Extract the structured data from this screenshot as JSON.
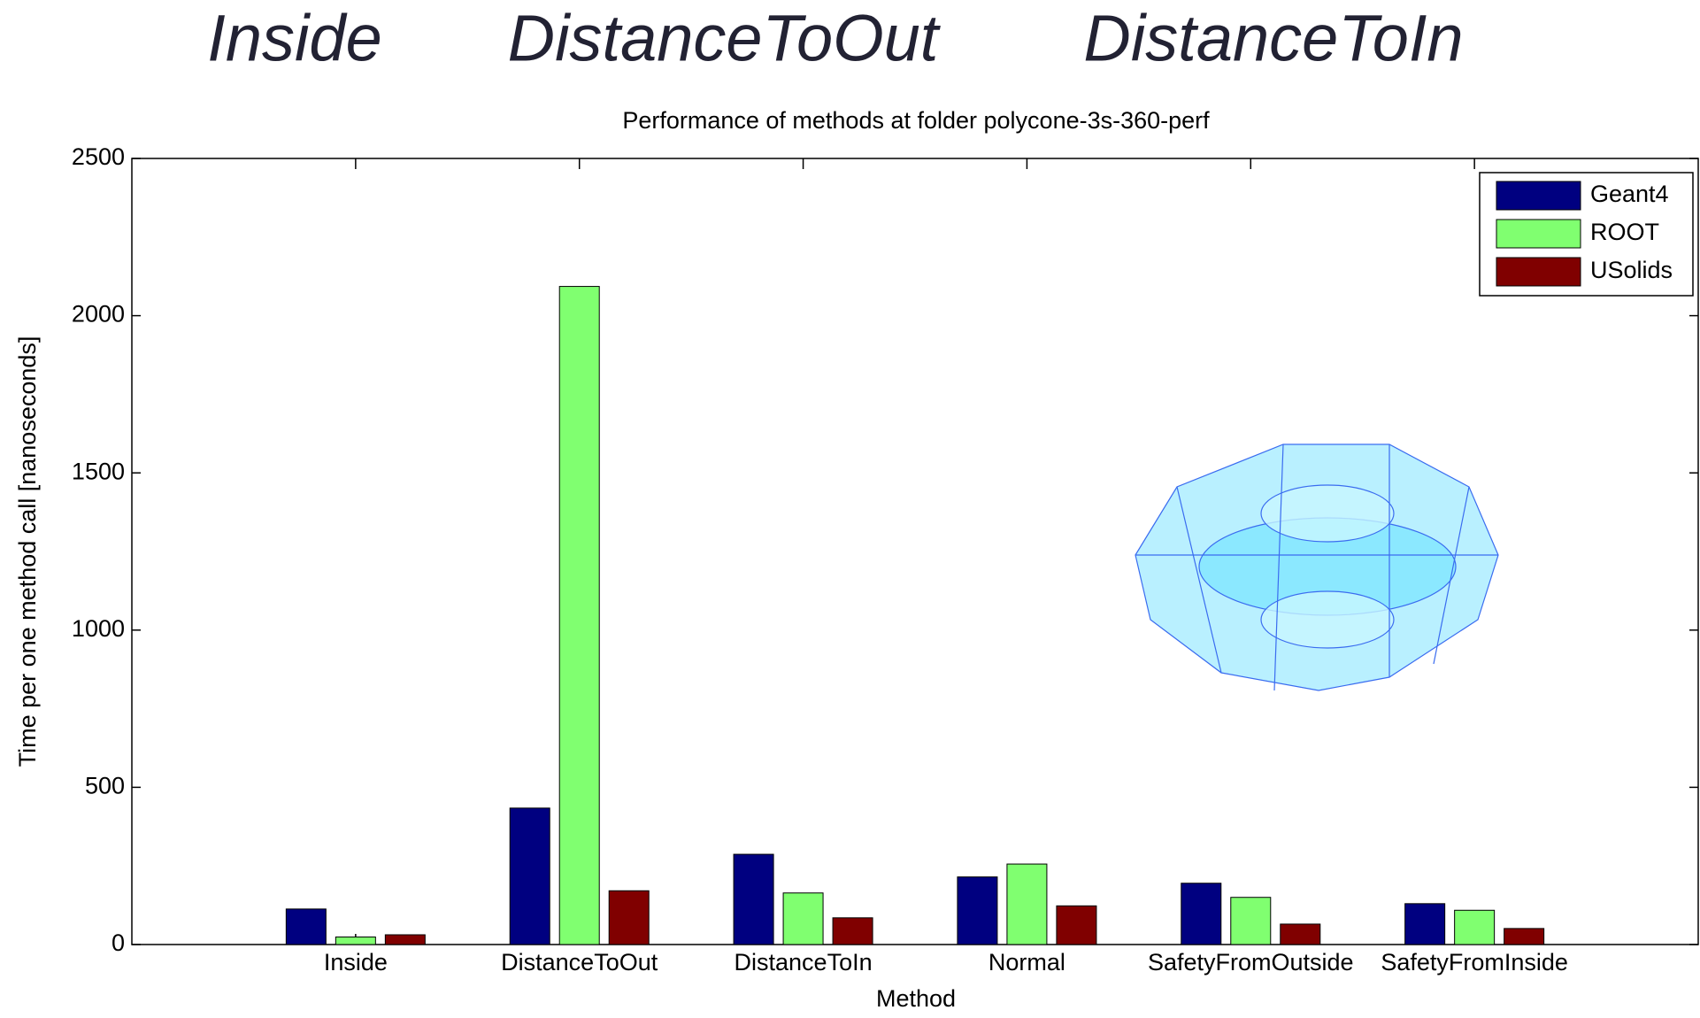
{
  "headings": [
    "Inside",
    "DistanceToOut",
    "DistanceToIn"
  ],
  "chart_data": {
    "type": "bar",
    "title": "Performance of methods at folder polycone-3s-360-perf",
    "x_label": "Method",
    "y_label": "Time per one method call [nanoseconds]",
    "categories": [
      "Inside",
      "DistanceToOut",
      "DistanceToIn",
      "Normal",
      "SafetyFromOutside",
      "SafetyFromInside"
    ],
    "series": [
      {
        "name": "Geant4",
        "color": "#000080",
        "values": [
          113,
          434,
          287,
          215,
          195,
          130
        ]
      },
      {
        "name": "ROOT",
        "color": "#80ff70",
        "values": [
          24,
          2093,
          164,
          256,
          150,
          109
        ]
      },
      {
        "name": "USolids",
        "color": "#800000",
        "values": [
          31,
          171,
          85,
          123,
          65,
          51
        ]
      }
    ],
    "ylim": [
      0,
      2500
    ],
    "yticks": [
      0,
      500,
      1000,
      1500,
      2000,
      2500
    ],
    "legend": "upper-right",
    "grid": false
  }
}
